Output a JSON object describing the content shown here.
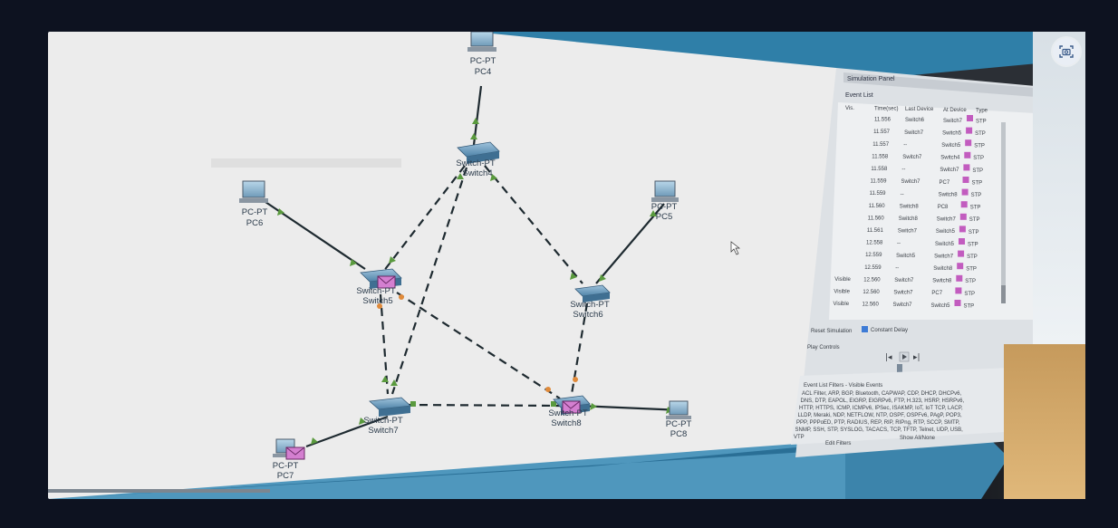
{
  "devices": {
    "pc4": {
      "type": "PC-PT",
      "name": "PC4"
    },
    "pc5": {
      "type": "PC-PT",
      "name": "PC5"
    },
    "pc6": {
      "type": "PC-PT",
      "name": "PC6"
    },
    "pc7": {
      "type": "PC-PT",
      "name": "PC7"
    },
    "pc8": {
      "type": "PC-PT",
      "name": "PC8"
    },
    "switch4": {
      "type": "Switch-PT",
      "name": "Switch4"
    },
    "switch5": {
      "type": "Switch-PT",
      "name": "Switch5"
    },
    "switch6": {
      "type": "Switch-PT",
      "name": "Switch6"
    },
    "switch7": {
      "type": "Switch-PT",
      "name": "Switch7"
    },
    "switch8": {
      "type": "Switch-PT",
      "name": "Switch8"
    }
  },
  "simulation_panel": {
    "title": "Simulation Panel",
    "event_list_title": "Event List",
    "columns": [
      "Vis.",
      "Time(sec)",
      "Last Device",
      "At Device",
      "Type"
    ],
    "rows": [
      {
        "vis": "",
        "time": "11.556",
        "last": "Switch6",
        "at": "Switch7",
        "type": "STP"
      },
      {
        "vis": "",
        "time": "11.557",
        "last": "Switch7",
        "at": "Switch5",
        "type": "STP"
      },
      {
        "vis": "",
        "time": "11.557",
        "last": "--",
        "at": "Switch5",
        "type": "STP"
      },
      {
        "vis": "",
        "time": "11.558",
        "last": "Switch7",
        "at": "Switch4",
        "type": "STP"
      },
      {
        "vis": "",
        "time": "11.558",
        "last": "--",
        "at": "Switch7",
        "type": "STP"
      },
      {
        "vis": "",
        "time": "11.559",
        "last": "Switch7",
        "at": "PC7",
        "type": "STP"
      },
      {
        "vis": "",
        "time": "11.559",
        "last": "--",
        "at": "Switch8",
        "type": "STP"
      },
      {
        "vis": "",
        "time": "11.560",
        "last": "Switch8",
        "at": "PC8",
        "type": "STP"
      },
      {
        "vis": "",
        "time": "11.560",
        "last": "Switch8",
        "at": "Switch7",
        "type": "STP"
      },
      {
        "vis": "",
        "time": "11.561",
        "last": "Switch7",
        "at": "Switch5",
        "type": "STP"
      },
      {
        "vis": "",
        "time": "12.558",
        "last": "--",
        "at": "Switch5",
        "type": "STP"
      },
      {
        "vis": "",
        "time": "12.559",
        "last": "Switch5",
        "at": "Switch7",
        "type": "STP"
      },
      {
        "vis": "",
        "time": "12.559",
        "last": "--",
        "at": "Switch8",
        "type": "STP"
      },
      {
        "vis": "Visible",
        "time": "12.560",
        "last": "Switch7",
        "at": "Switch8",
        "type": "STP"
      },
      {
        "vis": "Visible",
        "time": "12.560",
        "last": "Switch7",
        "at": "PC7",
        "type": "STP"
      },
      {
        "vis": "Visible",
        "time": "12.560",
        "last": "Switch7",
        "at": "Switch5",
        "type": "STP"
      }
    ],
    "reset_label": "Reset Simulation",
    "constant_delay_label": "Constant Delay",
    "play_controls_label": "Play Controls",
    "filters_label": "Event List Filters - Visible Events",
    "filters_text": "ACL Filter, ARP, BGP, Bluetooth, CAPWAP, CDP, DHCP, DHCPv6, DNS, DTP, EAPOL, EIGRP, EIGRPv6, FTP, H.323, HSRP, HSRPv6, HTTP, HTTPS, ICMP, ICMPv6, IPSec, ISAKMP, IoT, IoT TCP, LACP, LLDP, Meraki, NDP, NETFLOW, NTP, OSPF, OSPFv6, PAgP, POP3, PPP, PPPoED, PTP, RADIUS, REP, RIP, RIPng, RTP, SCCP, SMTP, SNMP, SSH, STP, SYSLOG, TACACS, TCP, TFTP, Telnet, UDP, USB, VTP",
    "edit_filters_label": "Edit Filters",
    "show_all_label": "Show All/None"
  },
  "colors": {
    "canvas": "#ececec",
    "link": "#1e2a30",
    "port_up": "#5a9a3e",
    "port_blocked": "#e08a3a",
    "pdu": "#c25cbf",
    "titlebar": "#2f7fa8"
  },
  "icons": [
    "camera-scan-icon",
    "pc-icon",
    "switch-icon",
    "envelope-pdu-icon",
    "mouse-cursor-icon"
  ]
}
